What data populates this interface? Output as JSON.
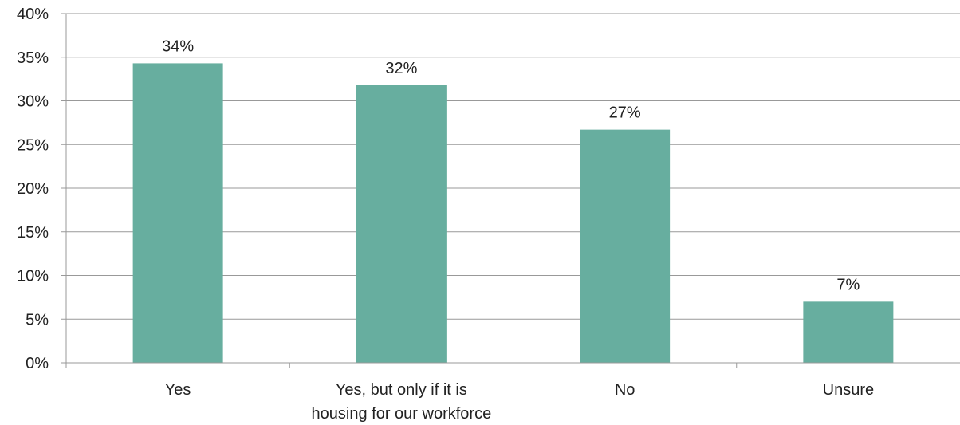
{
  "chart_data": {
    "type": "bar",
    "title": "",
    "xlabel": "",
    "ylabel": "",
    "categories": [
      [
        "Yes"
      ],
      [
        "Yes, but only if it is",
        "housing for our workforce"
      ],
      [
        "No"
      ],
      [
        "Unsure"
      ]
    ],
    "values": [
      34.3,
      31.8,
      26.7,
      7.0
    ],
    "data_labels": [
      "34%",
      "32%",
      "27%",
      "7%"
    ],
    "ylim": [
      0,
      40
    ],
    "yticks": [
      0,
      5,
      10,
      15,
      20,
      25,
      30,
      35,
      40
    ],
    "ytick_labels": [
      "0%",
      "5%",
      "10%",
      "15%",
      "20%",
      "25%",
      "30%",
      "35%",
      "40%"
    ],
    "grid": true,
    "legend": "none",
    "bar_color": "#67ae9f"
  }
}
